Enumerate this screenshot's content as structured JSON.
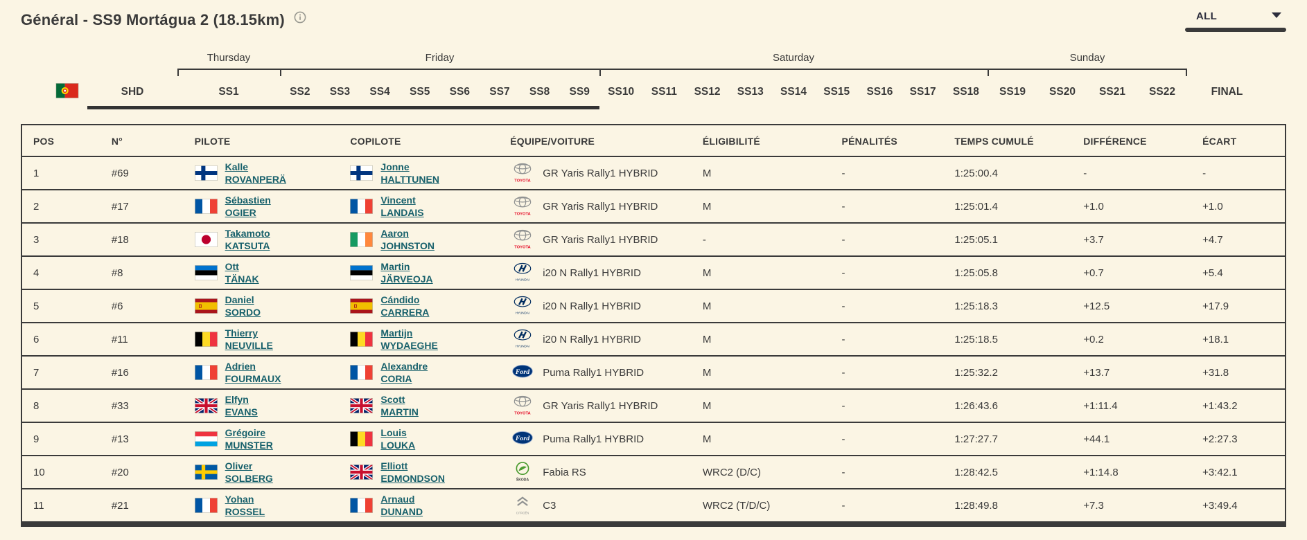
{
  "page": {
    "title": "Général - SS9 Mortágua 2 (18.15km)",
    "filter_value": "ALL"
  },
  "stage_nav": {
    "event_flag": "pt",
    "pre_stage": "SHD",
    "final": "FINAL",
    "selected": "SS9",
    "days": [
      {
        "label": "Thursday",
        "stages": [
          "SS1"
        ]
      },
      {
        "label": "Friday",
        "stages": [
          "SS2",
          "SS3",
          "SS4",
          "SS5",
          "SS6",
          "SS7",
          "SS8",
          "SS9"
        ]
      },
      {
        "label": "Saturday",
        "stages": [
          "SS10",
          "SS11",
          "SS12",
          "SS13",
          "SS14",
          "SS15",
          "SS16",
          "SS17",
          "SS18"
        ]
      },
      {
        "label": "Sunday",
        "stages": [
          "SS19",
          "SS20",
          "SS21",
          "SS22"
        ]
      }
    ]
  },
  "table": {
    "headers": [
      "POS",
      "N°",
      "PILOTE",
      "COPILOTE",
      "ÉQUIPE/VOITURE",
      "ÉLIGIBILITÉ",
      "PÉNALITÉS",
      "TEMPS CUMULÉ",
      "DIFFÉRENCE",
      "ÉCART"
    ],
    "rows": [
      {
        "pos": "1",
        "num": "#69",
        "pilot": {
          "first": "Kalle",
          "last": "ROVANPERÄ",
          "flag": "fi"
        },
        "copilot": {
          "first": "Jonne",
          "last": "HALTTUNEN",
          "flag": "fi"
        },
        "make": "toyota",
        "car": "GR Yaris Rally1 HYBRID",
        "eligibility": "M",
        "penalties": "-",
        "time": "1:25:00.4",
        "difference": "-",
        "gap": "-"
      },
      {
        "pos": "2",
        "num": "#17",
        "pilot": {
          "first": "Sébastien",
          "last": "OGIER",
          "flag": "fr"
        },
        "copilot": {
          "first": "Vincent",
          "last": "LANDAIS",
          "flag": "fr"
        },
        "make": "toyota",
        "car": "GR Yaris Rally1 HYBRID",
        "eligibility": "M",
        "penalties": "-",
        "time": "1:25:01.4",
        "difference": "+1.0",
        "gap": "+1.0"
      },
      {
        "pos": "3",
        "num": "#18",
        "pilot": {
          "first": "Takamoto",
          "last": "KATSUTA",
          "flag": "jp"
        },
        "copilot": {
          "first": "Aaron",
          "last": "JOHNSTON",
          "flag": "ie"
        },
        "make": "toyota",
        "car": "GR Yaris Rally1 HYBRID",
        "eligibility": "-",
        "penalties": "-",
        "time": "1:25:05.1",
        "difference": "+3.7",
        "gap": "+4.7"
      },
      {
        "pos": "4",
        "num": "#8",
        "pilot": {
          "first": "Ott",
          "last": "TÄNAK",
          "flag": "ee"
        },
        "copilot": {
          "first": "Martin",
          "last": "JÄRVEOJA",
          "flag": "ee"
        },
        "make": "hyundai",
        "car": "i20 N Rally1 HYBRID",
        "eligibility": "M",
        "penalties": "-",
        "time": "1:25:05.8",
        "difference": "+0.7",
        "gap": "+5.4"
      },
      {
        "pos": "5",
        "num": "#6",
        "pilot": {
          "first": "Daniel",
          "last": "SORDO",
          "flag": "es"
        },
        "copilot": {
          "first": "Cándido",
          "last": "CARRERA",
          "flag": "es"
        },
        "make": "hyundai",
        "car": "i20 N Rally1 HYBRID",
        "eligibility": "M",
        "penalties": "-",
        "time": "1:25:18.3",
        "difference": "+12.5",
        "gap": "+17.9"
      },
      {
        "pos": "6",
        "num": "#11",
        "pilot": {
          "first": "Thierry",
          "last": "NEUVILLE",
          "flag": "be"
        },
        "copilot": {
          "first": "Martijn",
          "last": "WYDAEGHE",
          "flag": "be"
        },
        "make": "hyundai",
        "car": "i20 N Rally1 HYBRID",
        "eligibility": "M",
        "penalties": "-",
        "time": "1:25:18.5",
        "difference": "+0.2",
        "gap": "+18.1"
      },
      {
        "pos": "7",
        "num": "#16",
        "pilot": {
          "first": "Adrien",
          "last": "FOURMAUX",
          "flag": "fr"
        },
        "copilot": {
          "first": "Alexandre",
          "last": "CORIA",
          "flag": "fr"
        },
        "make": "ford",
        "car": "Puma Rally1 HYBRID",
        "eligibility": "M",
        "penalties": "-",
        "time": "1:25:32.2",
        "difference": "+13.7",
        "gap": "+31.8"
      },
      {
        "pos": "8",
        "num": "#33",
        "pilot": {
          "first": "Elfyn",
          "last": "EVANS",
          "flag": "gb"
        },
        "copilot": {
          "first": "Scott",
          "last": "MARTIN",
          "flag": "gb"
        },
        "make": "toyota",
        "car": "GR Yaris Rally1 HYBRID",
        "eligibility": "M",
        "penalties": "-",
        "time": "1:26:43.6",
        "difference": "+1:11.4",
        "gap": "+1:43.2"
      },
      {
        "pos": "9",
        "num": "#13",
        "pilot": {
          "first": "Grégoire",
          "last": "MUNSTER",
          "flag": "lu"
        },
        "copilot": {
          "first": "Louis",
          "last": "LOUKA",
          "flag": "be"
        },
        "make": "ford",
        "car": "Puma Rally1 HYBRID",
        "eligibility": "M",
        "penalties": "-",
        "time": "1:27:27.7",
        "difference": "+44.1",
        "gap": "+2:27.3"
      },
      {
        "pos": "10",
        "num": "#20",
        "pilot": {
          "first": "Oliver",
          "last": "SOLBERG",
          "flag": "se"
        },
        "copilot": {
          "first": "Elliott",
          "last": "EDMONDSON",
          "flag": "gb"
        },
        "make": "skoda",
        "car": "Fabia RS",
        "eligibility": "WRC2 (D/C)",
        "penalties": "-",
        "time": "1:28:42.5",
        "difference": "+1:14.8",
        "gap": "+3:42.1"
      },
      {
        "pos": "11",
        "num": "#21",
        "pilot": {
          "first": "Yohan",
          "last": "ROSSEL",
          "flag": "fr"
        },
        "copilot": {
          "first": "Arnaud",
          "last": "DUNAND",
          "flag": "fr"
        },
        "make": "citroen",
        "car": "C3",
        "eligibility": "WRC2 (T/D/C)",
        "penalties": "-",
        "time": "1:28:49.8",
        "difference": "+7.3",
        "gap": "+3:49.4"
      }
    ]
  },
  "colors": {
    "background": "#fbf5e4",
    "ink": "#3a3a3a",
    "link_teal": "#17606b",
    "toyota_red": "#e40521",
    "hyundai_blue": "#002c5f",
    "ford_blue": "#003478",
    "skoda_green": "#4a9b2f",
    "selected_underline": "#333333"
  }
}
